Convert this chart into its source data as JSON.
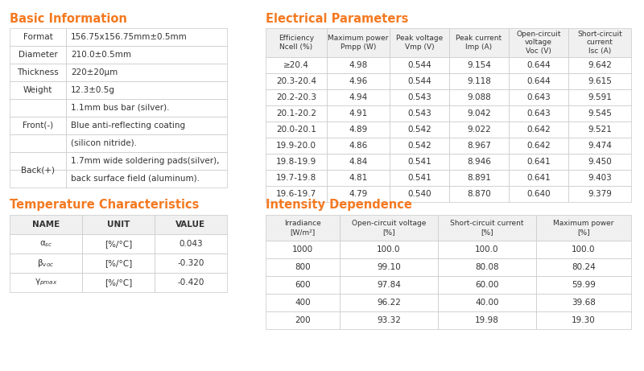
{
  "bg_color": "#ffffff",
  "orange_color": "#f47920",
  "border_color": "#c8c8c8",
  "text_color": "#333333",
  "header_bg": "#f0f0f0",
  "basic_info_title": "Basic Information",
  "basic_info_rows": [
    [
      "Format",
      "156.75x156.75mm±0.5mm"
    ],
    [
      "Diameter",
      "210.0±0.5mm"
    ],
    [
      "Thickness",
      "220±20μm"
    ],
    [
      "Weight",
      "12.3±0.5g"
    ],
    [
      "Front(-)",
      "1.1mm bus bar (silver)."
    ],
    [
      "",
      "Blue anti-reflecting coating"
    ],
    [
      "",
      "(silicon nitride)."
    ],
    [
      "Back(+)",
      "1.7mm wide soldering pads(silver),"
    ],
    [
      "",
      "back surface field (aluminum)."
    ]
  ],
  "temp_title": "Temperature Characteristics",
  "temp_headers": [
    "NAME",
    "UNIT",
    "VALUE"
  ],
  "temp_rows": [
    [
      "αsc",
      "[%/°C]",
      "0.043"
    ],
    [
      "βvoc",
      "[%/°C]",
      "-0.320"
    ],
    [
      "γpmax",
      "[%/°C]",
      "-0.420"
    ]
  ],
  "elec_title": "Electrical Parameters",
  "elec_headers": [
    "Efficiency\nNcell (%)",
    "Maximum power\nPmpp (W)",
    "Peak voltage\nVmp (V)",
    "Peak current\nImp (A)",
    "Open-circuit\nvoltage\nVoc (V)",
    "Short-circuit\ncurrent\nIsc (A)"
  ],
  "elec_rows": [
    [
      "≥20.4",
      "4.98",
      "0.544",
      "9.154",
      "0.644",
      "9.642"
    ],
    [
      "20.3-20.4",
      "4.96",
      "0.544",
      "9.118",
      "0.644",
      "9.615"
    ],
    [
      "20.2-20.3",
      "4.94",
      "0.543",
      "9.088",
      "0.643",
      "9.591"
    ],
    [
      "20.1-20.2",
      "4.91",
      "0.543",
      "9.042",
      "0.643",
      "9.545"
    ],
    [
      "20.0-20.1",
      "4.89",
      "0.542",
      "9.022",
      "0.642",
      "9.521"
    ],
    [
      "19.9-20.0",
      "4.86",
      "0.542",
      "8.967",
      "0.642",
      "9.474"
    ],
    [
      "19.8-19.9",
      "4.84",
      "0.541",
      "8.946",
      "0.641",
      "9.450"
    ],
    [
      "19.7-19.8",
      "4.81",
      "0.541",
      "8.891",
      "0.641",
      "9.403"
    ],
    [
      "19.6-19.7",
      "4.79",
      "0.540",
      "8.870",
      "0.640",
      "9.379"
    ]
  ],
  "intensity_title": "Intensity Dependence",
  "intensity_headers": [
    "Irradiance\n[W/m²]",
    "Open-circuit voltage\n[%]",
    "Short-circuit current\n[%]",
    "Maximum power\n[%]"
  ],
  "intensity_rows": [
    [
      "1000",
      "100.0",
      "100.0",
      "100.0"
    ],
    [
      "800",
      "99.10",
      "80.08",
      "80.24"
    ],
    [
      "600",
      "97.84",
      "60.00",
      "59.99"
    ],
    [
      "400",
      "96.22",
      "40.00",
      "39.68"
    ],
    [
      "200",
      "93.32",
      "19.98",
      "19.30"
    ]
  ]
}
